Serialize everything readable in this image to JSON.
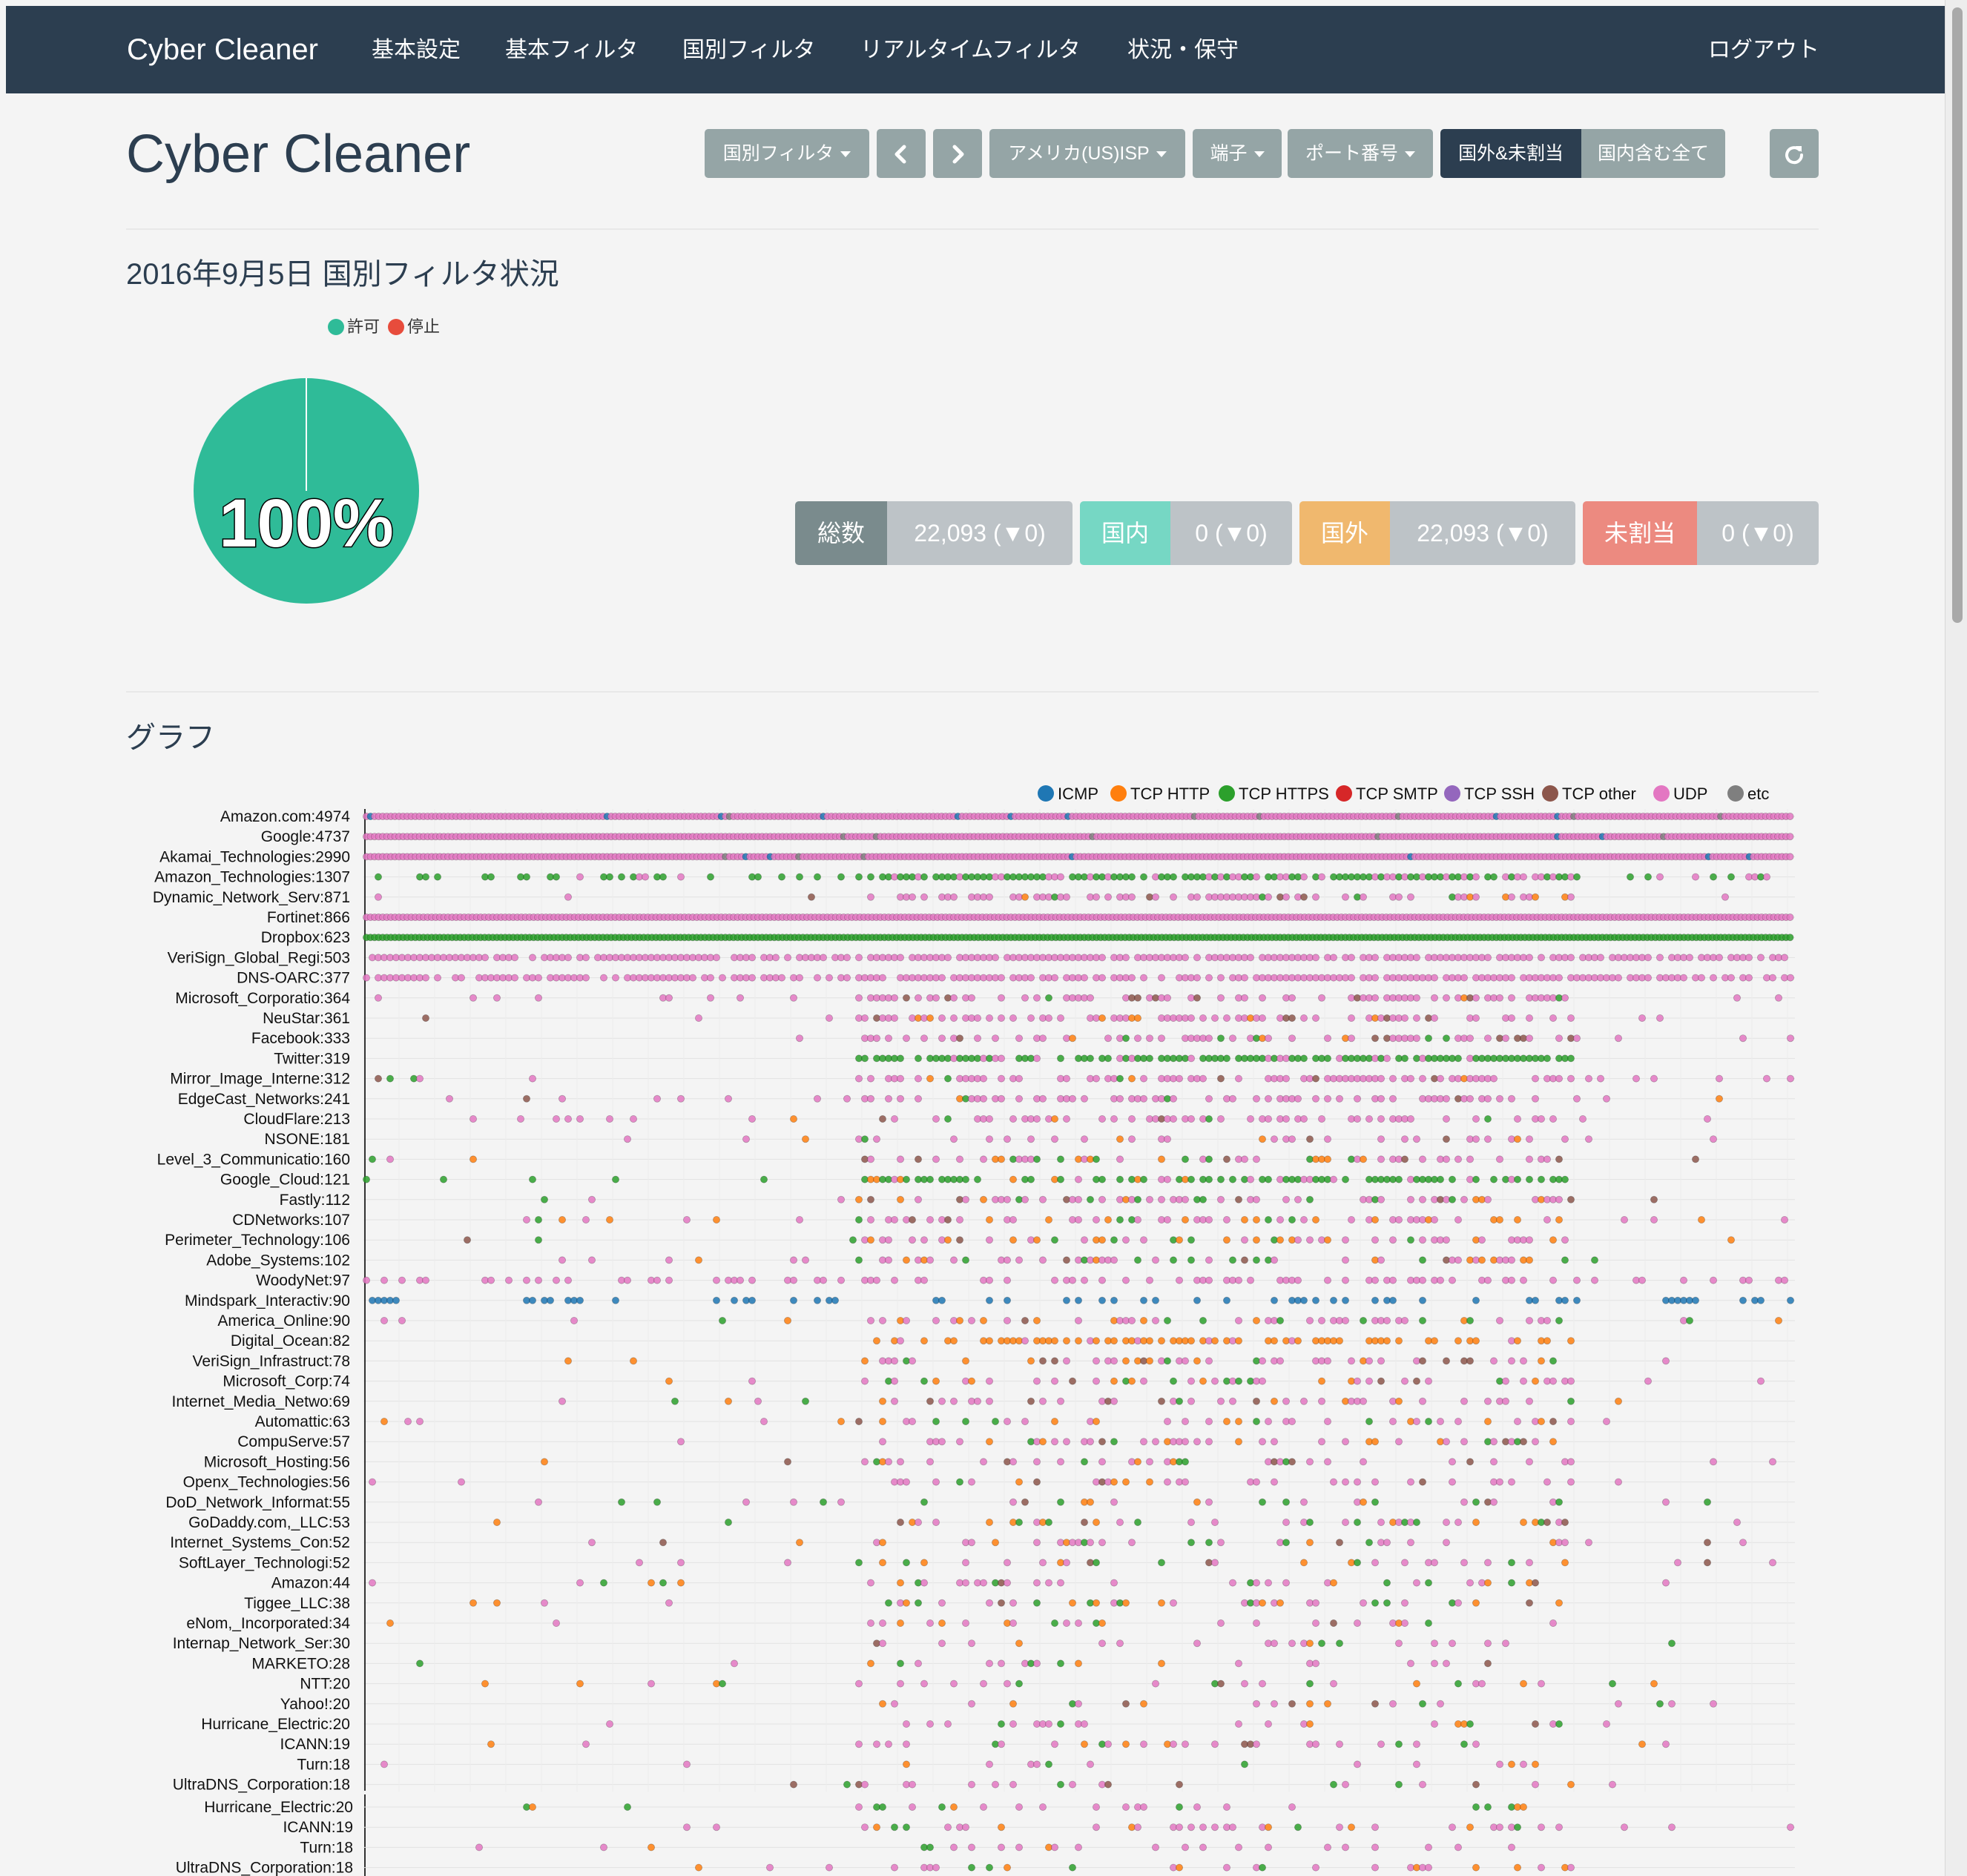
{
  "navbar": {
    "brand": "Cyber Cleaner",
    "items": [
      "基本設定",
      "基本フィルタ",
      "国別フィルタ",
      "リアルタイムフィルタ",
      "状況・保守"
    ],
    "logout": "ログアウト"
  },
  "header": {
    "title": "Cyber Cleaner",
    "filter_dropdown": "国別フィルタ",
    "isp_dropdown": "アメリカ(US)ISP",
    "terminal_dropdown": "端子",
    "port_dropdown": "ポート番号",
    "toggle_active": "国外&未割当",
    "toggle_inactive": "国内含む全て",
    "prev_icon": "chevron-left-icon",
    "next_icon": "chevron-right-icon",
    "refresh_icon": "refresh-icon"
  },
  "status": {
    "title": "2016年9月5日 国別フィルタ状況",
    "legend": [
      {
        "label": "許可",
        "color": "#2fbb98"
      },
      {
        "label": "停止",
        "color": "#e74c3c"
      }
    ],
    "pie_percent": "100%",
    "pie_allowed_fraction": 1.0,
    "stats": [
      {
        "label": "総数",
        "value": "22,093 (▼0)",
        "color": "#7a8b8d"
      },
      {
        "label": "国内",
        "value": "0 (▼0)",
        "color": "#76d7c4"
      },
      {
        "label": "国外",
        "value": "22,093 (▼0)",
        "color": "#f0b86e"
      },
      {
        "label": "未割当",
        "value": "0 (▼0)",
        "color": "#ec8a80"
      }
    ],
    "stat_value_color": "#bdc3c7"
  },
  "graph": {
    "title": "グラフ",
    "legend": [
      {
        "label": "ICMP",
        "color": "#1f77b4"
      },
      {
        "label": "TCP HTTP",
        "color": "#ff7f0e"
      },
      {
        "label": "TCP HTTPS",
        "color": "#2ca02c"
      },
      {
        "label": "TCP SMTP",
        "color": "#d62728"
      },
      {
        "label": "TCP SSH",
        "color": "#9467bd"
      },
      {
        "label": "TCP other",
        "color": "#8c564b"
      },
      {
        "label": "UDP",
        "color": "#e377c2"
      },
      {
        "label": "etc",
        "color": "#7f7f7f"
      }
    ],
    "rows": [
      "Amazon.com:4974",
      "Google:4737",
      "Akamai_Technologies:2990",
      "Amazon_Technologies:1307",
      "Dynamic_Network_Serv:871",
      "Fortinet:866",
      "Dropbox:623",
      "VeriSign_Global_Regi:503",
      "DNS-OARC:377",
      "Microsoft_Corporatio:364",
      "NeuStar:361",
      "Facebook:333",
      "Twitter:319",
      "Mirror_Image_Interne:312",
      "EdgeCast_Networks:241",
      "CloudFlare:213",
      "NSONE:181",
      "Level_3_Communicatio:160",
      "Google_Cloud:121",
      "Fastly:112",
      "CDNetworks:107",
      "Perimeter_Technology:106",
      "Adobe_Systems:102",
      "WoodyNet:97",
      "Mindspark_Interactiv:90",
      "America_Online:90",
      "Digital_Ocean:82",
      "VeriSign_Infrastruct:78",
      "Microsoft_Corp:74",
      "Internet_Media_Netwo:69",
      "Automattic:63",
      "CompuServe:57",
      "Microsoft_Hosting:56",
      "Openx_Technologies:56",
      "DoD_Network_Informat:55",
      "GoDaddy.com,_LLC:53",
      "Internet_Systems_Con:52",
      "SoftLayer_Technologi:52",
      "Amazon:44",
      "Tiggee_LLC:38",
      "eNom,_Incorporated:34",
      "Internap_Network_Ser:30",
      "MARKETO:28",
      "NTT:20",
      "Yahoo!:20",
      "Hurricane_Electric:20",
      "ICANN:19",
      "Turn:18",
      "UltraDNS_Corporation:18"
    ],
    "overlay_rows": [
      "Hurricane_Electric:20",
      "ICANN:19",
      "Turn:18",
      "UltraDNS_Corporation:18"
    ]
  }
}
